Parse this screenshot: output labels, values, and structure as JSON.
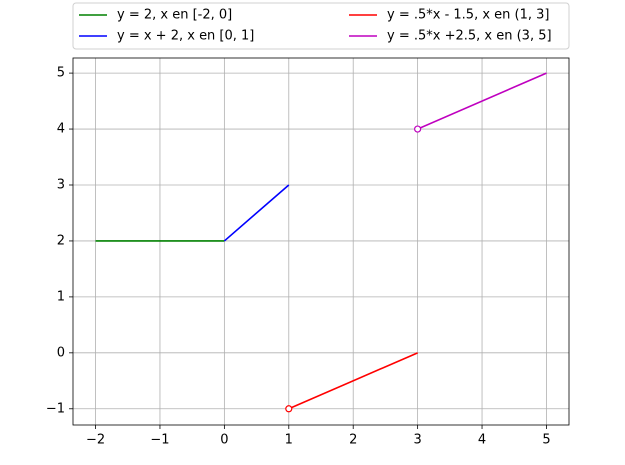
{
  "chart_data": {
    "type": "line",
    "xlim": [
      -2.35,
      5.35
    ],
    "ylim": [
      -1.29,
      5.27
    ],
    "xticks": [
      {
        "value": -2,
        "label": "−2"
      },
      {
        "value": -1,
        "label": "−1"
      },
      0,
      1,
      2,
      3,
      4,
      5
    ],
    "yticks": [
      {
        "value": -1,
        "label": "−1"
      },
      0,
      1,
      2,
      3,
      4,
      5
    ],
    "grid": true,
    "legend": "top",
    "legend_columns": 2,
    "series": [
      {
        "name": "y = 2, x en [-2, 0]",
        "color": "#008000",
        "x": [
          -2,
          0
        ],
        "values": [
          2,
          2
        ],
        "open_start": false
      },
      {
        "name": "y = x + 2, x en [0, 1]",
        "color": "#0000ff",
        "x": [
          0,
          1
        ],
        "values": [
          2,
          3
        ],
        "open_start": false
      },
      {
        "name": "y = .5*x - 1.5, x en (1, 3]",
        "color": "#ff0000",
        "x": [
          1,
          3
        ],
        "values": [
          -1,
          0
        ],
        "open_start": true
      },
      {
        "name": "y = .5*x +2.5, x en (3, 5]",
        "color": "#bf00bf",
        "x": [
          3,
          5
        ],
        "values": [
          4,
          5
        ],
        "open_start": true
      }
    ]
  }
}
